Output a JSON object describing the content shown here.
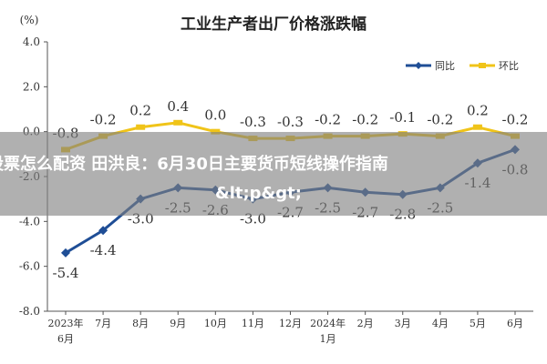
{
  "chart_data": {
    "type": "line",
    "title": "工业生产者出厂价格涨跌幅",
    "ylabel": "(%)",
    "ylim": [
      -8.0,
      4.0
    ],
    "yticks": [
      "4.0",
      "2.0",
      "0.0",
      "-2.0",
      "-4.0",
      "-6.0",
      "-8.0"
    ],
    "ytick_values": [
      4,
      2,
      0,
      -2,
      -4,
      -6,
      -8
    ],
    "x_labels": [
      [
        "2023年",
        "6月"
      ],
      [
        "7月"
      ],
      [
        "8月"
      ],
      [
        "9月"
      ],
      [
        "10月"
      ],
      [
        "11月"
      ],
      [
        "12月"
      ],
      [
        "2024年",
        "1月"
      ],
      [
        "2月"
      ],
      [
        "3月"
      ],
      [
        "4月"
      ],
      [
        "5月"
      ],
      [
        "6月"
      ]
    ],
    "series": [
      {
        "name": "同比",
        "color": "#1f4e96",
        "values": [
          -5.4,
          -4.4,
          -3.0,
          -2.5,
          -2.6,
          -3.0,
          -2.7,
          -2.5,
          -2.7,
          -2.8,
          -2.5,
          -1.4,
          -0.8
        ],
        "labels": [
          "-5.4",
          "-4.4",
          "-3.0",
          "-2.5",
          "-2.6",
          "-3.0",
          "-2.7",
          "-2.5",
          "-2.7",
          "-2.8",
          "-2.5",
          "-1.4",
          "-0.8"
        ]
      },
      {
        "name": "环比",
        "color": "#f0c419",
        "values": [
          -0.8,
          -0.2,
          0.2,
          0.4,
          0.0,
          -0.3,
          -0.3,
          -0.2,
          -0.2,
          -0.1,
          -0.2,
          0.2,
          -0.2
        ],
        "labels": [
          "-0.8",
          "-0.2",
          "0.2",
          "0.4",
          "0.0",
          "-0.3",
          "-0.3",
          "-0.2",
          "-0.2",
          "-0.1",
          "-0.2",
          "0.2",
          "-0.2"
        ]
      }
    ],
    "legend": "top-right",
    "grid": false
  },
  "overlay": {
    "line1": "股票怎么配资 田洪良：6月30日主要货币短线操作指南",
    "line2": "&lt;p&gt;"
  }
}
